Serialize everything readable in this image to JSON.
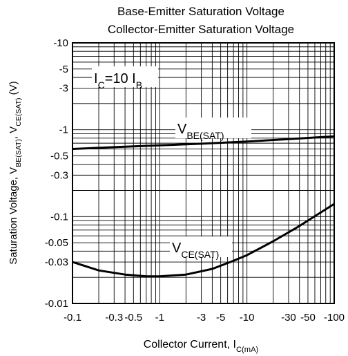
{
  "chart_data": {
    "type": "line",
    "title": [
      "Base-Emitter Saturation Voltage",
      "Collector-Emitter Saturation Voltage"
    ],
    "xlabel": "Collector Current, I_C(mA)",
    "ylabel": "Saturation Voltage, V_BE(SAT), V_CE(SAT) (V)",
    "x_scale": "log",
    "y_scale": "log",
    "xlim": [
      -0.1,
      -100
    ],
    "ylim": [
      -0.01,
      -10
    ],
    "grid": true,
    "x_tick_labels": [
      "-0.1",
      "-0.3",
      "-0.5",
      "-1",
      "-3",
      "-5",
      "-10",
      "-30",
      "-50",
      "-100"
    ],
    "y_tick_labels": [
      "-10",
      "-5",
      "-3",
      "-1",
      "-0.5",
      "-0.3",
      "-0.1",
      "-0.05",
      "-0.03",
      "-0.01"
    ],
    "condition_label": "I_C=10 I_B",
    "series": [
      {
        "name": "V_BE(SAT)",
        "x": [
          -0.1,
          -0.3,
          -1,
          -3,
          -10,
          -30,
          -100
        ],
        "y": [
          -0.6,
          -0.63,
          -0.66,
          -0.69,
          -0.73,
          -0.78,
          -0.84
        ]
      },
      {
        "name": "V_CE(SAT)",
        "x": [
          -0.1,
          -0.2,
          -0.4,
          -0.7,
          -1.0,
          -2,
          -4,
          -7,
          -10,
          -20,
          -40,
          -100
        ],
        "y": [
          -0.03,
          -0.024,
          -0.0215,
          -0.0205,
          -0.0205,
          -0.0215,
          -0.025,
          -0.031,
          -0.036,
          -0.052,
          -0.078,
          -0.14
        ]
      }
    ]
  }
}
